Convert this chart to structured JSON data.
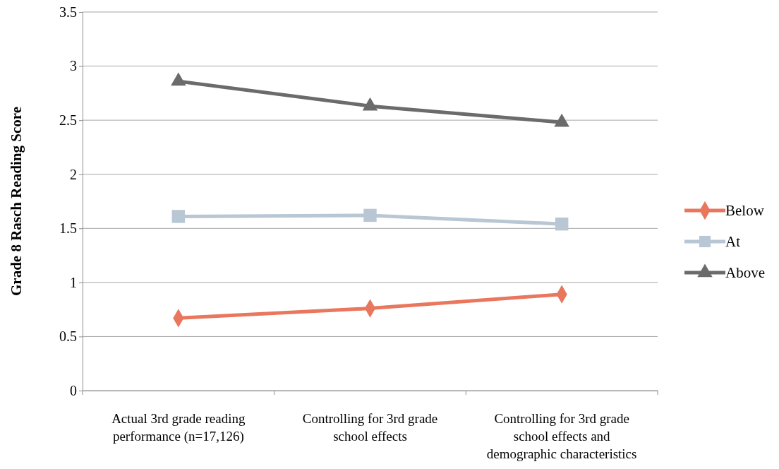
{
  "chart_data": {
    "type": "line",
    "ylabel": "Grade 8 Rasch Reading Score",
    "categories": [
      "Actual 3rd grade reading performance (n=17,126)",
      "Controlling for 3rd grade school effects",
      "Controlling for 3rd grade school effects and demographic characteristics"
    ],
    "series": [
      {
        "name": "Below",
        "color": "#e8775e",
        "marker": "diamond",
        "values": [
          0.67,
          0.76,
          0.89
        ]
      },
      {
        "name": "At",
        "color": "#b8c7d3",
        "marker": "square",
        "values": [
          1.61,
          1.62,
          1.54
        ]
      },
      {
        "name": "Above",
        "color": "#6b6b6b",
        "marker": "triangle",
        "values": [
          2.86,
          2.63,
          2.48
        ]
      }
    ],
    "ylim": [
      0,
      3.5
    ],
    "yticks": [
      0,
      0.5,
      1,
      1.5,
      2,
      2.5,
      3,
      3.5
    ],
    "grid": "y",
    "legend": "right"
  }
}
